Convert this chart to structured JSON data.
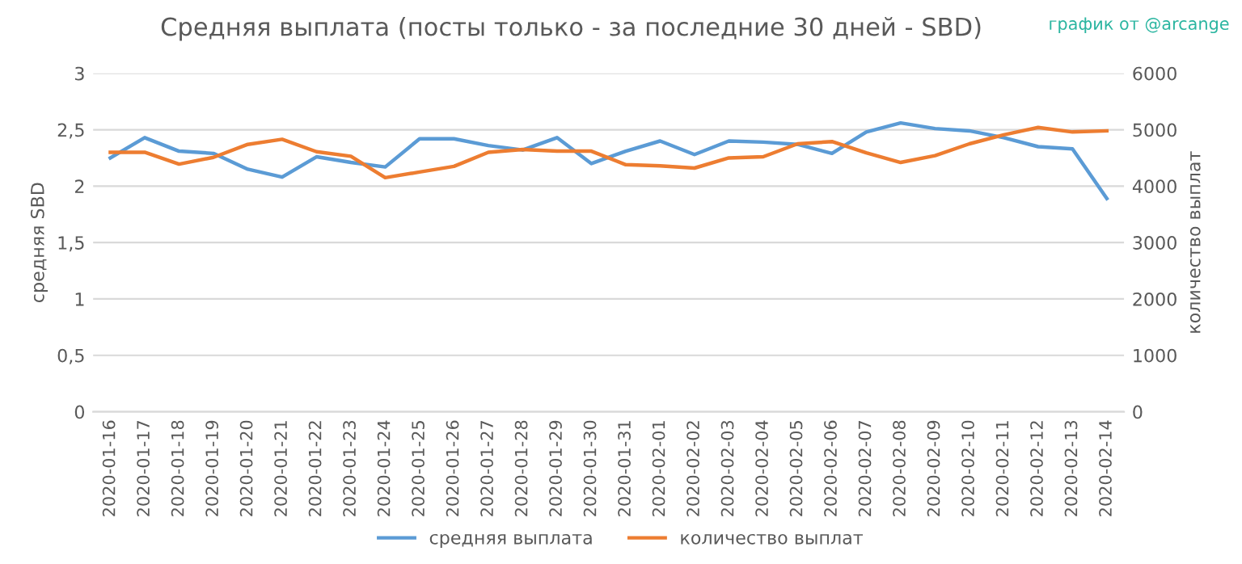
{
  "chart_data": {
    "type": "line",
    "title": "Средняя выплата (посты только - за последние 30 дней - SBD)",
    "ylabel": "средняя SBD",
    "y2label": "количество выплат",
    "annotations": [
      "график от @arcange"
    ],
    "categories": [
      "2020-01-16",
      "2020-01-17",
      "2020-01-18",
      "2020-01-19",
      "2020-01-20",
      "2020-01-21",
      "2020-01-22",
      "2020-01-23",
      "2020-01-24",
      "2020-01-25",
      "2020-01-26",
      "2020-01-27",
      "2020-01-28",
      "2020-01-29",
      "2020-01-30",
      "2020-01-31",
      "2020-02-01",
      "2020-02-02",
      "2020-02-03",
      "2020-02-04",
      "2020-02-05",
      "2020-02-06",
      "2020-02-07",
      "2020-02-08",
      "2020-02-09",
      "2020-02-10",
      "2020-02-11",
      "2020-02-12",
      "2020-02-13",
      "2020-02-14"
    ],
    "series": [
      {
        "name": "средняя выплата",
        "color": "#5b9bd5",
        "values": [
          2.25,
          2.43,
          2.31,
          2.29,
          2.15,
          2.08,
          2.26,
          2.21,
          2.17,
          2.42,
          2.42,
          2.36,
          2.32,
          2.43,
          2.2,
          2.31,
          2.4,
          2.28,
          2.4,
          2.39,
          2.37,
          2.29,
          2.48,
          2.56,
          2.51,
          2.49,
          2.43,
          2.35,
          2.33,
          1.89
        ]
      },
      {
        "name": "количество выплат",
        "color": "#ed7d31",
        "axis": "y2",
        "values": [
          4600,
          4600,
          4390,
          4510,
          4740,
          4830,
          4610,
          4530,
          4150,
          4250,
          4350,
          4600,
          4650,
          4620,
          4620,
          4380,
          4360,
          4320,
          4500,
          4520,
          4750,
          4790,
          4590,
          4420,
          4540,
          4750,
          4910,
          5040,
          4960,
          4980
        ]
      }
    ],
    "ylim": [
      0,
      3
    ],
    "yticks": [
      0,
      {
        "value": 0.5,
        "label": "0,5"
      },
      1,
      {
        "value": 1.5,
        "label": "1,5"
      },
      2,
      {
        "value": 2.5,
        "label": "2,5"
      },
      3
    ],
    "y2lim": [
      0,
      6000
    ],
    "y2ticks": [
      0,
      1000,
      2000,
      3000,
      4000,
      5000,
      6000
    ],
    "grid": "y",
    "legend": "bottom",
    "marker": "none",
    "line_style": "solid"
  }
}
